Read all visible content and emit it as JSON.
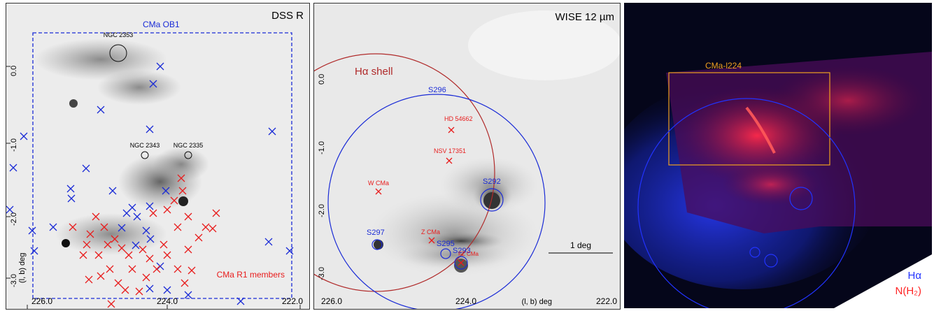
{
  "panel1": {
    "title": "DSS R",
    "region_label": "CMa OB1",
    "members_label": "CMa R1 members",
    "cluster_labels": [
      "NGC 2353",
      "NGC 2343",
      "NGC 2335"
    ],
    "axis_label": "(l, b) deg",
    "x_ticks": [
      "226.0",
      "224.0",
      "222.0"
    ],
    "y_ticks": [
      "0.0",
      "-1.0",
      "-2.0",
      "-3.0"
    ],
    "colors": {
      "blue": "#1a2bd6",
      "red": "#e81c1c"
    }
  },
  "panel2": {
    "title": "WISE 12 µm",
    "shell_label": "Hα shell",
    "circle_labels": [
      "S296",
      "S292",
      "S297",
      "S295",
      "S293"
    ],
    "star_labels": [
      "HD 54662",
      "NSV 17351",
      "W CMa",
      "Z CMa",
      "FZ CMa"
    ],
    "scale_label": "1 deg",
    "axis_label": "(l, b) deg",
    "x_ticks": [
      "226.0",
      "224.0",
      "222.0"
    ],
    "y_ticks": [
      "0.0",
      "-1.0",
      "-2.0",
      "-3.0"
    ],
    "colors": {
      "blue": "#1a2bd6",
      "red": "#e81c1c",
      "shell": "#b02a2a"
    }
  },
  "panel3": {
    "box_label": "CMa-l224",
    "legend_halpha": "Hα",
    "legend_h2": "N(H₂)",
    "colors": {
      "box": "#f0a020",
      "blue": "#2233ff",
      "red": "#ff2222"
    }
  }
}
